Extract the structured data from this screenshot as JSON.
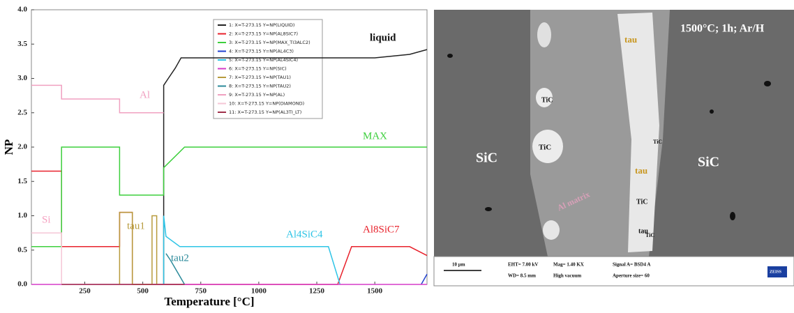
{
  "chart_data": {
    "type": "line",
    "xlabel": "Temperature [°C]",
    "ylabel": "NP",
    "xlim": [
      20,
      1725
    ],
    "ylim": [
      0,
      4
    ],
    "xticks": [
      250,
      500,
      750,
      1000,
      1250,
      1500
    ],
    "yticks": [
      {
        "value": 0,
        "label": "0.0"
      },
      {
        "value": 0.5,
        "label": "0.5"
      },
      {
        "value": 1,
        "label": "1.0"
      },
      {
        "value": 1.5,
        "label": "1.5"
      },
      {
        "value": 2,
        "label": "2.0"
      },
      {
        "value": 2.5,
        "label": "2.5"
      },
      {
        "value": 3,
        "label": "3.0"
      },
      {
        "value": 3.5,
        "label": "3.5"
      },
      {
        "value": 4,
        "label": "4.0"
      }
    ],
    "annotations": [
      "liquid",
      "Al",
      "MAX",
      "Si",
      "tau1",
      "tau2",
      "Al4SiC4",
      "Al8SiC7"
    ],
    "series": [
      {
        "name": "1:  X=T-273.15  Y=NP(LIQUID)",
        "color": "#222222",
        "x": [
          590,
          590,
          610,
          640,
          665,
          800,
          1000,
          1200,
          1500,
          1650,
          1725
        ],
        "values": [
          0,
          2.9,
          3.0,
          3.15,
          3.3,
          3.3,
          3.3,
          3.3,
          3.3,
          3.35,
          3.42
        ]
      },
      {
        "name": "2:  X=T-273.15  Y=NP(AL8SIC7)",
        "color": "#e8212b",
        "x": [
          20,
          150,
          150,
          400,
          400,
          455,
          455,
          1340,
          1400,
          1650,
          1725
        ],
        "values": [
          1.65,
          1.65,
          0.55,
          0.55,
          1.05,
          1.05,
          0,
          0,
          0.55,
          0.55,
          0.42
        ]
      },
      {
        "name": "3:  X=T-273.15  Y=NP(MAX_TI3ALC2)",
        "color": "#3ccf3c",
        "x": [
          20,
          150,
          150,
          400,
          400,
          590,
          590,
          680,
          1725
        ],
        "values": [
          0.55,
          0.55,
          2.0,
          2.0,
          1.3,
          1.3,
          1.7,
          2.0,
          2.0
        ]
      },
      {
        "name": "4:  X=T-273.15  Y=NP(AL4C3)",
        "color": "#1f3fd0",
        "x": [
          1700,
          1725
        ],
        "values": [
          0,
          0.15
        ]
      },
      {
        "name": "5:  X=T-273.15  Y=NP(AL4SIC4)",
        "color": "#2ec4e6",
        "x": [
          590,
          590,
          600,
          660,
          1300,
          1350
        ],
        "values": [
          0,
          1.0,
          0.7,
          0.55,
          0.55,
          0
        ]
      },
      {
        "name": "6:  X=T-273.15  Y=NP(SIC)",
        "color": "#d63cc8",
        "x": [
          20,
          1725
        ],
        "values": [
          0,
          0
        ]
      },
      {
        "name": "7:  X=T-273.15  Y=NP(TAU1)",
        "color": "#b79a3c",
        "x": [
          400,
          400,
          455,
          455,
          540,
          540,
          560,
          560
        ],
        "values": [
          0,
          1.05,
          1.05,
          0,
          0,
          1.0,
          1.0,
          0
        ]
      },
      {
        "name": "8:  X=T-273.15  Y=NP(TAU2)",
        "color": "#2b8a9a",
        "x": [
          600,
          620,
          680
        ],
        "values": [
          0.45,
          0.35,
          0
        ]
      },
      {
        "name": "9:  X=T-273.15  Y=NP(AL)",
        "color": "#f0a0c0",
        "x": [
          20,
          150,
          150,
          400,
          400,
          590
        ],
        "values": [
          2.9,
          2.9,
          2.7,
          2.7,
          2.5,
          2.5
        ]
      },
      {
        "name": "10:  X=T-273.15  Y=NP(DIAMOND)",
        "color": "#f5c6d6",
        "x": [
          20,
          150,
          150
        ],
        "values": [
          0.75,
          0.75,
          0
        ]
      },
      {
        "name": "11:  X=T-273.15  Y=NP(AL3TI_LT)",
        "color": "#a0304a",
        "x": [
          150,
          680
        ],
        "values": [
          0,
          0
        ]
      }
    ]
  },
  "micrograph": {
    "caption": "1500°C; 1h; Ar/H",
    "labels": [
      "SiC",
      "SiC",
      "tau",
      "tau",
      "tau",
      "TiC",
      "TiC",
      "TiC",
      "TiC",
      "TiC",
      "Al matrix"
    ],
    "scale": "10 μm",
    "eht": "EHT= 7.00 kV",
    "wd": "WD= 8.5 mm",
    "mag": "Mag= 1.40 KX",
    "vacuum": "High vacuum",
    "signal": "Signal A= BSD4 A",
    "aperture": "Aperture size= 60",
    "brand": "ZEISS"
  }
}
